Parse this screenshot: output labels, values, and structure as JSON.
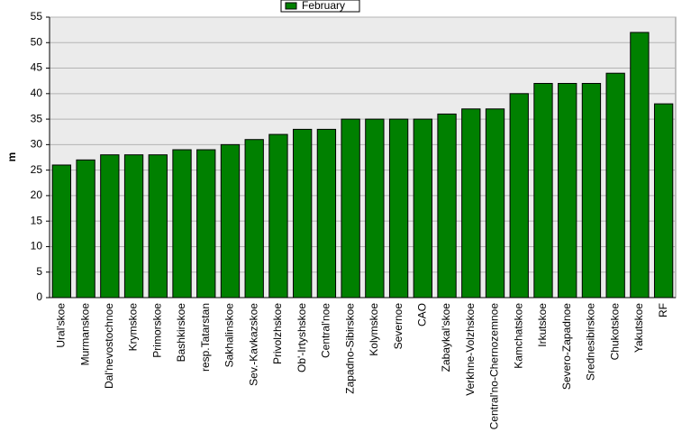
{
  "chart_data": {
    "type": "bar",
    "y_label": "m",
    "legend_position": "top",
    "categories": [
      "Ural'skoe",
      "Murmanskoe",
      "Dal'nevostochnoe",
      "Krymskoe",
      "Primorskoe",
      "Bashkirskoe",
      "resp.Tatarstan",
      "Sakhalinskoe",
      "Sev.-Kavkazskoe",
      "Privolzhskoe",
      "Ob'-Irtyshskoe",
      "Central'noe",
      "Zapadno-Sibirskoe",
      "Kolymskoe",
      "Severnoe",
      "CAO",
      "Zabaykal'skoe",
      "Verkhne-Volzhskoe",
      "Central'no-Chernozemnoe",
      "Kamchatskoe",
      "Irkutskoe",
      "Severo-Zapadnoe",
      "Srednesibirskoe",
      "Chukotskoe",
      "Yakutskoe",
      "RF"
    ],
    "series": [
      {
        "name": "February",
        "color": "#008000",
        "values": [
          26,
          27,
          28,
          28,
          28,
          29,
          29,
          30,
          31,
          32,
          33,
          33,
          35,
          35,
          35,
          35,
          36,
          37,
          37,
          40,
          42,
          42,
          42,
          44,
          52,
          38
        ]
      }
    ],
    "ylim": [
      0,
      55
    ],
    "yticks": [
      0,
      5,
      10,
      15,
      20,
      25,
      30,
      35,
      40,
      45,
      50,
      55
    ],
    "grid": true
  }
}
